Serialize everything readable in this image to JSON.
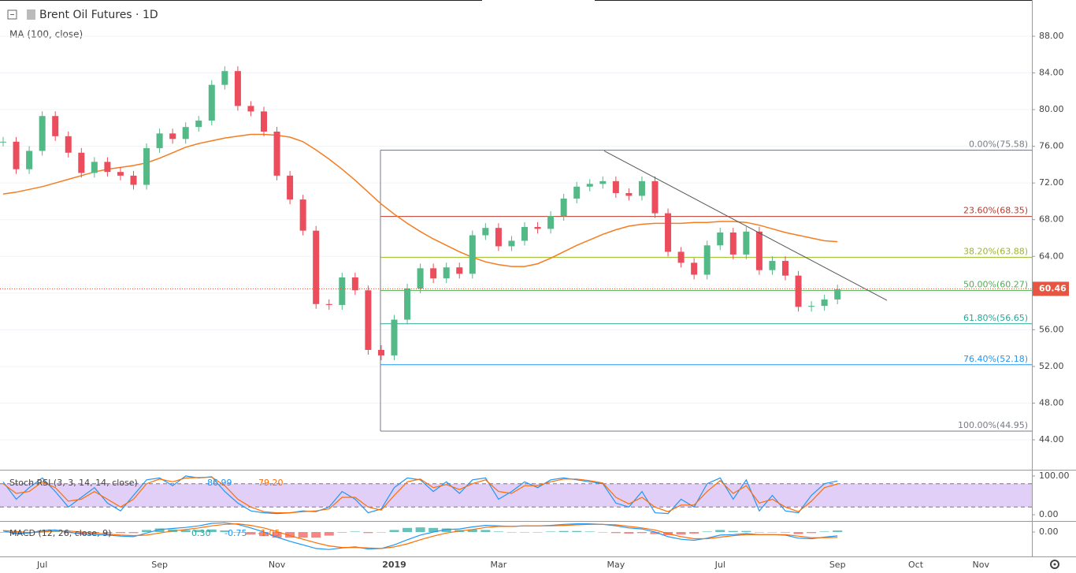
{
  "chart_data": [
    {
      "type": "candlestick",
      "title": "Brent Oil Futures · 1D",
      "categories": [
        null,
        null,
        null,
        "Jul",
        null,
        null,
        null,
        null,
        null,
        null,
        null,
        null,
        "Sep",
        null,
        null,
        null,
        null,
        null,
        null,
        null,
        null,
        "Nov",
        null,
        null,
        null,
        null,
        null,
        null,
        null,
        null,
        "2019",
        null,
        null,
        null,
        null,
        null,
        null,
        null,
        "Mar",
        null,
        null,
        null,
        null,
        null,
        null,
        null,
        null,
        "May",
        null,
        null,
        null,
        null,
        null,
        null,
        null,
        "Jul",
        null,
        null,
        null,
        null,
        null,
        null,
        null,
        null,
        "Sep",
        null,
        null,
        null,
        null,
        null,
        "Oct",
        null,
        null,
        null,
        null,
        "Nov"
      ],
      "close": [
        76.5,
        73.5,
        75.5,
        79.3,
        77.1,
        75.3,
        73.1,
        74.3,
        73.2,
        72.8,
        71.8,
        75.8,
        77.4,
        76.8,
        78.1,
        78.8,
        82.7,
        84.2,
        80.4,
        79.8,
        77.6,
        72.8,
        70.2,
        66.8,
        58.8,
        58.7,
        61.7,
        60.3,
        53.8,
        53.2,
        57.1,
        60.5,
        62.7,
        61.6,
        62.8,
        62.1,
        66.3,
        67.1,
        65.1,
        65.7,
        67.2,
        67.0,
        68.4,
        70.3,
        71.6,
        71.9,
        72.2,
        70.9,
        70.6,
        72.2,
        68.7,
        64.5,
        63.3,
        62.0,
        65.2,
        66.6,
        64.2,
        66.7,
        62.5,
        63.5,
        61.9,
        58.5,
        58.6,
        59.3,
        60.4,
        null,
        null,
        null,
        null,
        null,
        null,
        null,
        null,
        null,
        null,
        null
      ],
      "up_color": "#53b987",
      "down_color": "#eb4d5c",
      "ma": {
        "name": "MA (100, close)",
        "color": "#f57c1f",
        "values": [
          70.8,
          71.0,
          71.3,
          71.6,
          72.0,
          72.4,
          72.8,
          73.2,
          73.5,
          73.7,
          73.9,
          74.2,
          74.7,
          75.3,
          75.9,
          76.3,
          76.6,
          76.9,
          77.1,
          77.3,
          77.3,
          77.2,
          77.0,
          76.5,
          75.6,
          74.6,
          73.5,
          72.3,
          71.0,
          69.7,
          68.6,
          67.6,
          66.7,
          65.9,
          65.2,
          64.5,
          63.9,
          63.4,
          63.1,
          62.9,
          62.9,
          63.2,
          63.8,
          64.5,
          65.2,
          65.8,
          66.4,
          66.9,
          67.3,
          67.5,
          67.6,
          67.6,
          67.6,
          67.7,
          67.7,
          67.8,
          67.8,
          67.7,
          67.4,
          67.0,
          66.6,
          66.3,
          66.0,
          65.7,
          65.6,
          null,
          null,
          null,
          null,
          null,
          null,
          null,
          null,
          null,
          null,
          null
        ]
      },
      "ylim": [
        40.82,
        91.95
      ],
      "yticks": [
        {
          "value": 44,
          "label": "44.00"
        },
        {
          "value": 48,
          "label": "48.00"
        },
        {
          "value": 52,
          "label": "52.00"
        },
        {
          "value": 56,
          "label": "56.00"
        },
        {
          "value": 60,
          "label": "60.00"
        },
        {
          "value": 64,
          "label": "64.00"
        },
        {
          "value": 68,
          "label": "68.00"
        },
        {
          "value": 72,
          "label": "72.00"
        },
        {
          "value": 76,
          "label": "76.00"
        },
        {
          "value": 80,
          "label": "80.00"
        },
        {
          "value": 84,
          "label": "84.00"
        },
        {
          "value": 88,
          "label": "88.00"
        }
      ],
      "fib": [
        {
          "label": "0.00%(75.58)",
          "value": 75.58,
          "color": "#787b86"
        },
        {
          "label": "23.60%(68.35)",
          "value": 68.35,
          "color": "#c0392b"
        },
        {
          "label": "38.20%(63.88)",
          "value": 63.88,
          "color": "#9bb822"
        },
        {
          "label": "50.00%(60.27)",
          "value": 60.27,
          "color": "#4caf50"
        },
        {
          "label": "61.80%(56.65)",
          "value": 56.65,
          "color": "#26a69a"
        },
        {
          "label": "76.40%(52.18)",
          "value": 52.18,
          "color": "#2196f3"
        },
        {
          "label": "100.00%(44.95)",
          "value": 44.95,
          "color": "#787b86"
        }
      ],
      "trendline": {
        "values": [
          75.5,
          59.2
        ],
        "color": "#555555"
      },
      "last_price": 60.46,
      "last_price_color": "#e55541"
    },
    {
      "type": "oscillator",
      "title": "Stoch RSI (3, 3, 14, 14, close)",
      "legend_values": [
        "86.99",
        "79.20"
      ],
      "series": [
        {
          "color": "#2196f3",
          "values": [
            85,
            40,
            70,
            95,
            60,
            20,
            45,
            70,
            30,
            10,
            50,
            90,
            95,
            75,
            100,
            95,
            98,
            60,
            30,
            10,
            5,
            3,
            5,
            10,
            8,
            20,
            60,
            40,
            5,
            15,
            70,
            95,
            90,
            60,
            85,
            55,
            90,
            95,
            40,
            60,
            85,
            70,
            90,
            95,
            90,
            85,
            80,
            30,
            20,
            60,
            5,
            3,
            40,
            20,
            80,
            95,
            40,
            90,
            10,
            50,
            10,
            5,
            50,
            80,
            86.99,
            null,
            null,
            null,
            null,
            null,
            null,
            null,
            null,
            null,
            null,
            null
          ]
        },
        {
          "color": "#ff6d00",
          "values": [
            80,
            55,
            60,
            85,
            70,
            35,
            40,
            60,
            40,
            20,
            40,
            80,
            92,
            85,
            95,
            96,
            97,
            75,
            40,
            20,
            8,
            5,
            5,
            8,
            10,
            15,
            45,
            45,
            20,
            12,
            50,
            85,
            92,
            70,
            78,
            65,
            80,
            90,
            60,
            55,
            75,
            75,
            85,
            92,
            92,
            88,
            82,
            45,
            28,
            45,
            20,
            8,
            25,
            25,
            60,
            88,
            55,
            75,
            30,
            40,
            20,
            8,
            35,
            70,
            79.2,
            null,
            null,
            null,
            null,
            null,
            null,
            null,
            null,
            null,
            null,
            null
          ]
        }
      ],
      "bands": [
        20,
        80
      ],
      "band_color": "#e1cff7",
      "ylim": [
        -14,
        114
      ],
      "yticks": [
        {
          "value": 100,
          "label": "100.00"
        },
        {
          "value": 0,
          "label": "0.00"
        }
      ]
    },
    {
      "type": "macd",
      "title": "MACD (12, 26, close, 9)",
      "legend_values": [
        "0.30",
        "-0.75",
        "-1.05"
      ],
      "histogram": [
        -0.1,
        -0.4,
        -0.1,
        0.3,
        0.2,
        -0.2,
        -0.4,
        -0.3,
        -0.2,
        -0.2,
        -0.2,
        0.4,
        0.7,
        0.5,
        0.4,
        0.4,
        0.5,
        0.3,
        -0.1,
        -0.5,
        -0.8,
        -1.1,
        -1.1,
        -1.1,
        -1.1,
        -0.7,
        -0.1,
        0.1,
        -0.2,
        0.0,
        0.4,
        0.8,
        0.9,
        0.8,
        0.7,
        0.4,
        0.5,
        0.4,
        0.1,
        0.0,
        0.0,
        0.0,
        0.1,
        0.2,
        0.2,
        0.1,
        0.0,
        -0.2,
        -0.3,
        -0.2,
        -0.4,
        -0.6,
        -0.5,
        -0.3,
        0.1,
        0.4,
        0.2,
        0.2,
        0.0,
        0.0,
        -0.1,
        -0.4,
        -0.2,
        0.1,
        0.3,
        null,
        null,
        null,
        null,
        null,
        null,
        null,
        null,
        null,
        null,
        null
      ],
      "hist_colors": [
        "#26a69a",
        "#ef5350"
      ],
      "series": [
        {
          "color": "#2196f3",
          "values": [
            0.2,
            -0.3,
            -0.2,
            0.3,
            0.4,
            0.0,
            -0.4,
            -0.5,
            -0.6,
            -0.8,
            -0.9,
            -0.2,
            0.5,
            0.7,
            0.9,
            1.2,
            1.7,
            1.8,
            1.5,
            0.8,
            0.0,
            -1.0,
            -1.8,
            -2.5,
            -3.2,
            -3.4,
            -3.1,
            -2.9,
            -3.3,
            -3.2,
            -2.5,
            -1.5,
            -0.6,
            0.0,
            0.5,
            0.6,
            1.0,
            1.3,
            1.2,
            1.1,
            1.2,
            1.2,
            1.3,
            1.5,
            1.6,
            1.6,
            1.5,
            1.2,
            0.8,
            0.6,
            0.0,
            -0.9,
            -1.4,
            -1.6,
            -1.2,
            -0.6,
            -0.5,
            -0.3,
            -0.5,
            -0.5,
            -0.6,
            -1.2,
            -1.3,
            -1.0,
            -0.75,
            null,
            null,
            null,
            null,
            null,
            null,
            null,
            null,
            null,
            null,
            null
          ]
        },
        {
          "color": "#ff6d00",
          "values": [
            0.3,
            0.1,
            -0.1,
            0.0,
            0.2,
            0.2,
            0.0,
            -0.2,
            -0.4,
            -0.6,
            -0.7,
            -0.6,
            -0.2,
            0.2,
            0.5,
            0.8,
            1.2,
            1.5,
            1.6,
            1.3,
            0.8,
            0.1,
            -0.7,
            -1.4,
            -2.1,
            -2.7,
            -3.0,
            -3.0,
            -3.1,
            -3.2,
            -2.9,
            -2.3,
            -1.5,
            -0.8,
            -0.2,
            0.2,
            0.5,
            0.9,
            1.1,
            1.1,
            1.2,
            1.2,
            1.2,
            1.3,
            1.4,
            1.5,
            1.5,
            1.4,
            1.1,
            0.8,
            0.4,
            -0.3,
            -0.9,
            -1.3,
            -1.3,
            -1.0,
            -0.7,
            -0.5,
            -0.5,
            -0.5,
            -0.5,
            -0.8,
            -1.1,
            -1.1,
            -1.05,
            null,
            null,
            null,
            null,
            null,
            null,
            null,
            null,
            null,
            null,
            null
          ]
        }
      ],
      "ylim": [
        -4.6,
        2.0
      ],
      "yticks": [
        {
          "value": 0,
          "label": "0.00"
        }
      ]
    }
  ]
}
